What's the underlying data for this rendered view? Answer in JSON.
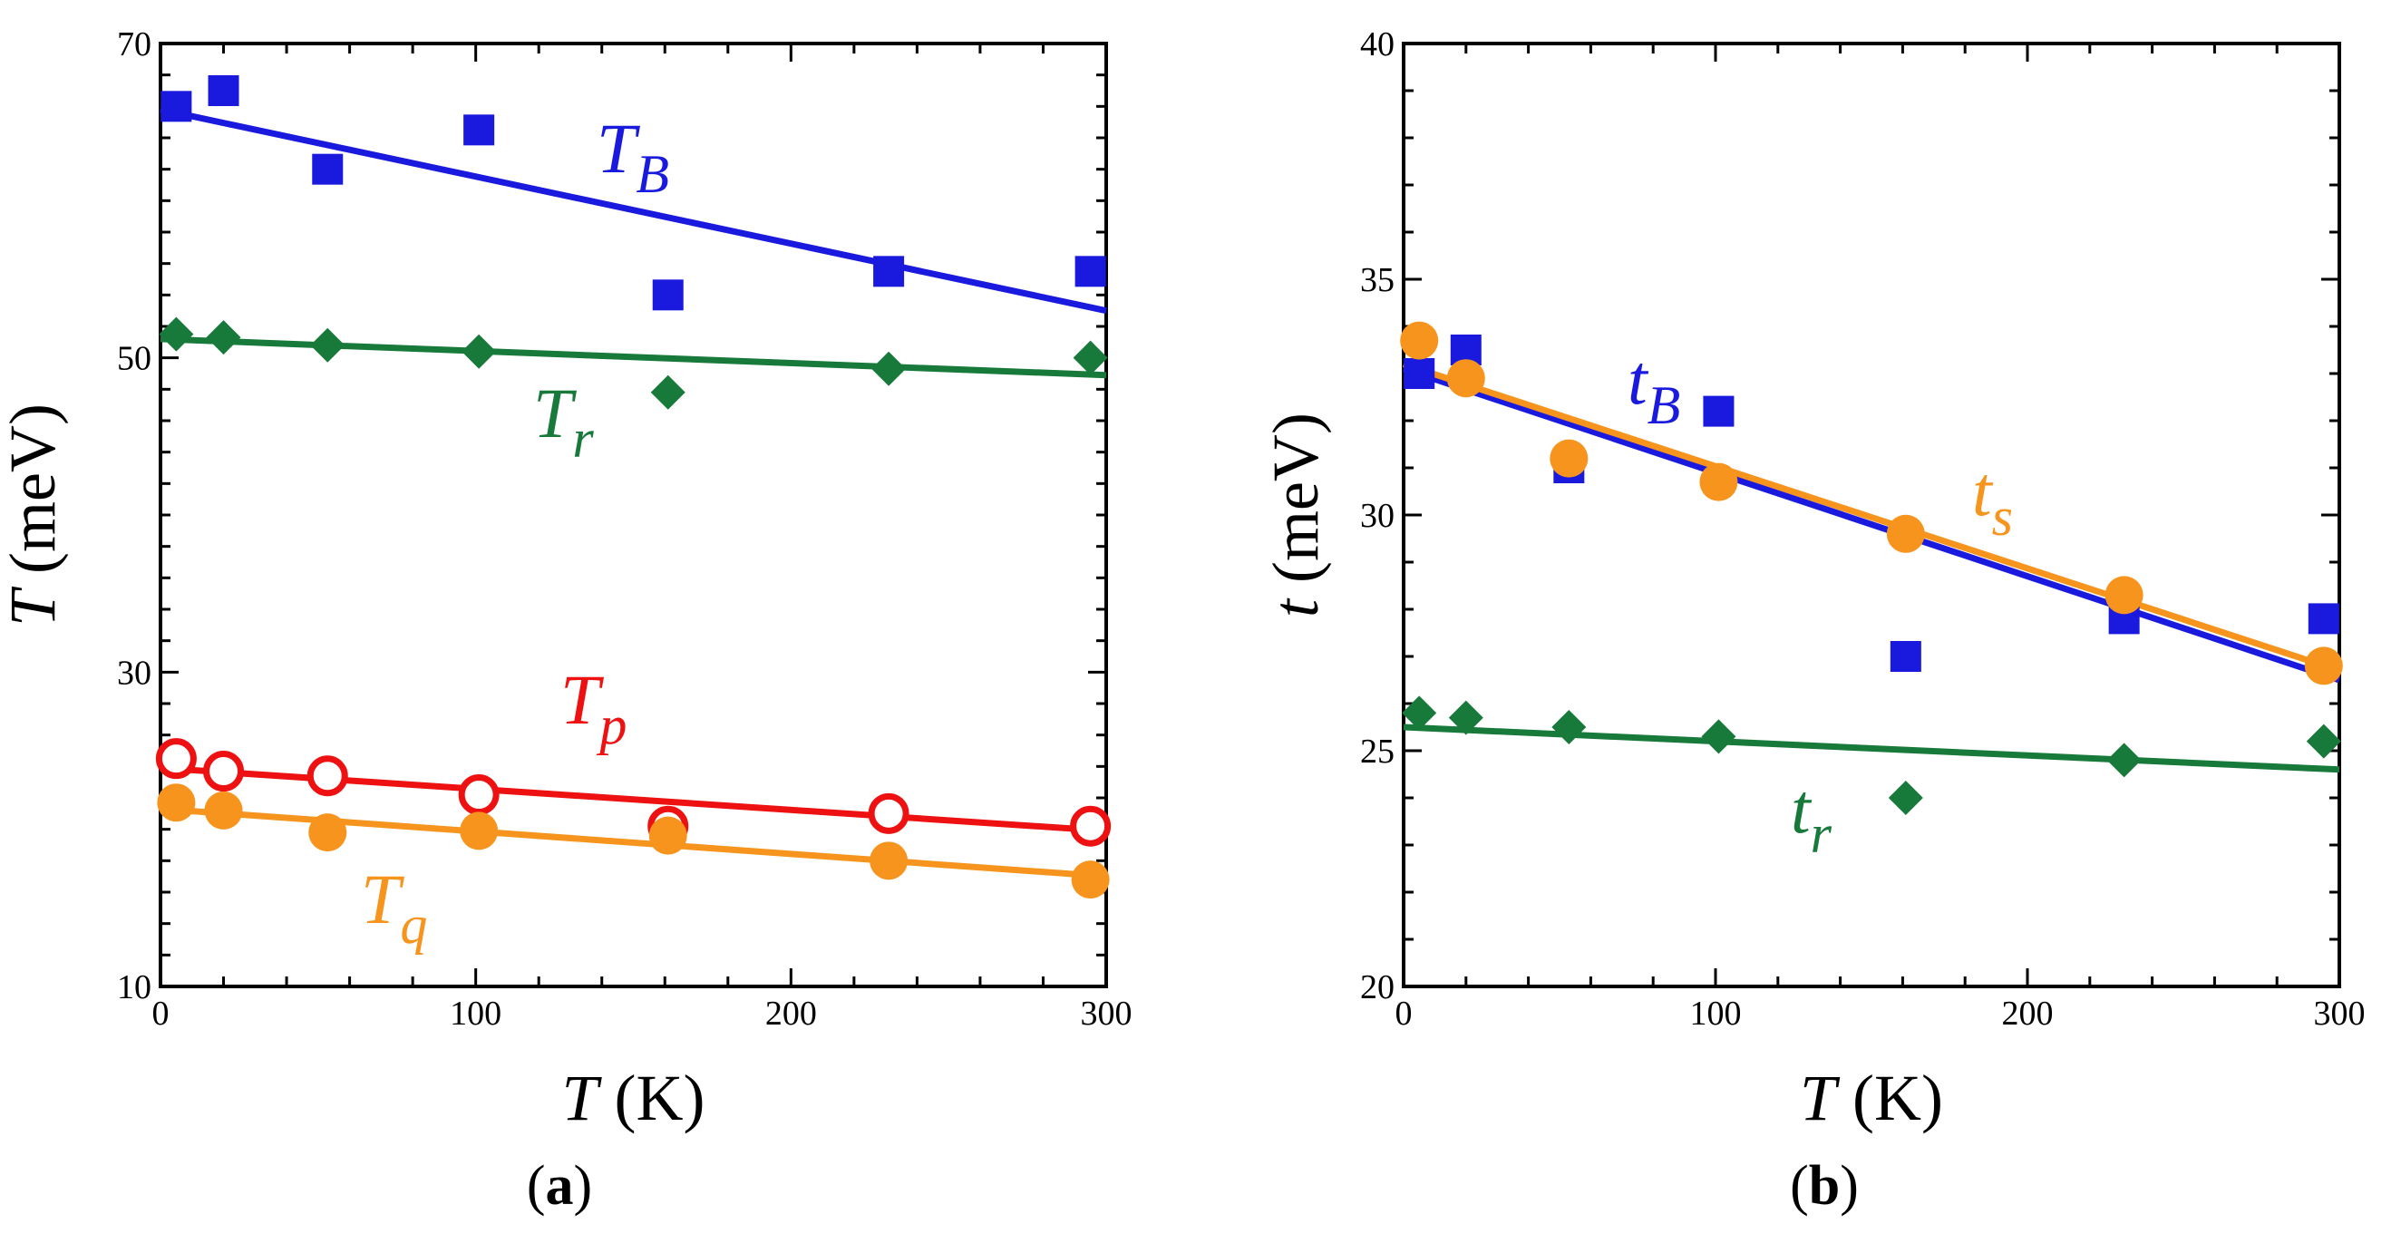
{
  "figure": {
    "panels": [
      {
        "caption_open": "(",
        "caption_letter": "a",
        "caption_close": ")"
      },
      {
        "caption_open": "(",
        "caption_letter": "b",
        "caption_close": ")"
      }
    ]
  },
  "colors": {
    "blue": "#1a1adf",
    "green": "#177a3a",
    "red": "#ee1111",
    "orange": "#f7941d",
    "axis": "#000000"
  },
  "chart_data": [
    {
      "type": "scatter",
      "panel": "a",
      "xlabel": {
        "var": "T",
        "unit": " (K)"
      },
      "ylabel": {
        "var": "T",
        "unit": " (meV)"
      },
      "xlim": [
        0,
        300
      ],
      "ylim": [
        10,
        70
      ],
      "xticks": [
        0,
        100,
        200,
        300
      ],
      "yticks": [
        10,
        30,
        50,
        70
      ],
      "series": [
        {
          "name": "T_B",
          "label_main": "T",
          "label_sub": "B",
          "color_key": "blue",
          "marker": "square",
          "x": [
            5,
            20,
            53,
            101,
            161,
            231,
            295
          ],
          "y": [
            66.0,
            67.0,
            62.0,
            64.5,
            54.0,
            55.5,
            55.5
          ],
          "fit": {
            "x": [
              0,
              300
            ],
            "y": [
              65.8,
              53.0
            ]
          }
        },
        {
          "name": "T_r",
          "label_main": "T",
          "label_sub": "r",
          "color_key": "green",
          "marker": "diamond",
          "x": [
            5,
            20,
            53,
            101,
            161,
            231,
            295
          ],
          "y": [
            51.5,
            51.3,
            50.8,
            50.4,
            47.8,
            49.3,
            50.0
          ],
          "fit": {
            "x": [
              0,
              300
            ],
            "y": [
              51.2,
              48.9
            ]
          }
        },
        {
          "name": "T_p",
          "label_main": "T",
          "label_sub": "p",
          "color_key": "red",
          "marker": "open-circle",
          "x": [
            5,
            20,
            53,
            101,
            161,
            231,
            295
          ],
          "y": [
            24.5,
            23.7,
            23.4,
            22.2,
            20.2,
            21.0,
            20.2
          ],
          "fit": {
            "x": [
              0,
              300
            ],
            "y": [
              23.9,
              19.9
            ]
          }
        },
        {
          "name": "T_q",
          "label_main": "T",
          "label_sub": "q",
          "color_key": "orange",
          "marker": "circle",
          "x": [
            5,
            20,
            53,
            101,
            161,
            231,
            295
          ],
          "y": [
            21.7,
            21.2,
            19.8,
            19.9,
            19.6,
            18.0,
            16.8
          ],
          "fit": {
            "x": [
              0,
              300
            ],
            "y": [
              21.3,
              17.0
            ]
          }
        }
      ]
    },
    {
      "type": "scatter",
      "panel": "b",
      "xlabel": {
        "var": "T",
        "unit": " (K)"
      },
      "ylabel": {
        "var": "t",
        "unit": " (meV)"
      },
      "xlim": [
        0,
        300
      ],
      "ylim": [
        20,
        40
      ],
      "xticks": [
        0,
        100,
        200,
        300
      ],
      "yticks": [
        20,
        25,
        30,
        35,
        40
      ],
      "series": [
        {
          "name": "t_B",
          "label_main": "t",
          "label_sub": "B",
          "color_key": "blue",
          "marker": "square",
          "x": [
            5,
            20,
            53,
            101,
            161,
            231,
            295
          ],
          "y": [
            33.0,
            33.5,
            31.0,
            32.2,
            27.0,
            27.8,
            27.8
          ],
          "fit": {
            "x": [
              0,
              300
            ],
            "y": [
              33.1,
              26.5
            ]
          }
        },
        {
          "name": "t_s",
          "label_main": "t",
          "label_sub": "s",
          "color_key": "orange",
          "marker": "circle",
          "x": [
            5,
            20,
            53,
            101,
            161,
            231,
            295
          ],
          "y": [
            33.7,
            32.9,
            31.2,
            30.7,
            29.6,
            28.3,
            26.8
          ],
          "fit": {
            "x": [
              0,
              300
            ],
            "y": [
              33.2,
              26.7
            ]
          }
        },
        {
          "name": "t_r",
          "label_main": "t",
          "label_sub": "r",
          "color_key": "green",
          "marker": "diamond",
          "x": [
            5,
            20,
            53,
            101,
            161,
            231,
            295
          ],
          "y": [
            25.8,
            25.7,
            25.5,
            25.3,
            24.0,
            24.8,
            25.2
          ],
          "fit": {
            "x": [
              0,
              300
            ],
            "y": [
              25.5,
              24.6
            ]
          }
        }
      ]
    }
  ]
}
